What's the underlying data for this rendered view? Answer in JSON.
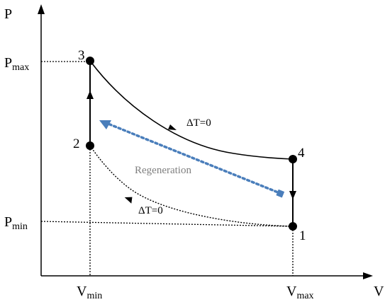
{
  "axes": {
    "y_label": "P",
    "x_label": "V"
  },
  "ticks": {
    "p_max": {
      "main": "P",
      "sub": "max"
    },
    "p_min": {
      "main": "P",
      "sub": "min"
    },
    "v_min": {
      "main": "V",
      "sub": "min"
    },
    "v_max": {
      "main": "V",
      "sub": "max"
    }
  },
  "states": [
    "1",
    "2",
    "3",
    "4"
  ],
  "process_labels": {
    "upper_isotherm": "ΔT=0",
    "lower_isotherm": "ΔT=0",
    "regeneration": "Regeneration"
  },
  "colors": {
    "line": "#000000",
    "regeneration_arrow": "#4a7ebb",
    "regeneration_text": "#7f7f7f"
  }
}
